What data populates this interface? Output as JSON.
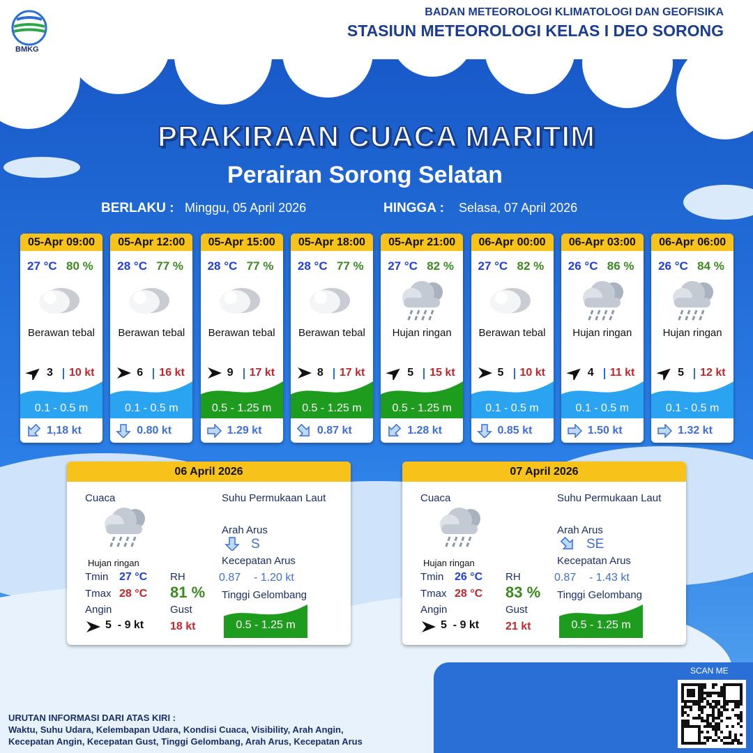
{
  "header": {
    "logo": "BMKG",
    "org": "BADAN METEOROLOGI KLIMATOLOGI DAN GEOFISIKA",
    "station": "STASIUN METEOROLOGI KELAS I DEO SORONG"
  },
  "title": "PRAKIRAAN CUACA MARITIM",
  "subtitle": "Perairan Sorong Selatan",
  "validity": {
    "from_label": "BERLAKU :",
    "from": "Minggu, 05 April 2026",
    "to_label": "HINGGA :",
    "to": "Selasa, 07 April 2026"
  },
  "cards": [
    {
      "time": "05-Apr 09:00",
      "temp": "27 °C",
      "rh": "80 %",
      "weather": "Berawan tebal",
      "wind": "3",
      "gust": "10 kt",
      "wave": "0.1 - 0.5 m",
      "current": "1,18 kt"
    },
    {
      "time": "05-Apr 12:00",
      "temp": "28 °C",
      "rh": "77 %",
      "weather": "Berawan tebal",
      "wind": "6",
      "gust": "16 kt",
      "wave": "0.1 - 0.5 m",
      "current": "0.80 kt"
    },
    {
      "time": "05-Apr 15:00",
      "temp": "28 °C",
      "rh": "77 %",
      "weather": "Berawan tebal",
      "wind": "9",
      "gust": "17 kt",
      "wave": "0.5 - 1.25 m",
      "current": "1.29 kt"
    },
    {
      "time": "05-Apr 18:00",
      "temp": "28 °C",
      "rh": "77 %",
      "weather": "Berawan tebal",
      "wind": "8",
      "gust": "17 kt",
      "wave": "0.5 - 1.25 m",
      "current": "0.87 kt"
    },
    {
      "time": "05-Apr 21:00",
      "temp": "27 °C",
      "rh": "82 %",
      "weather": "Hujan ringan",
      "wind": "5",
      "gust": "15 kt",
      "wave": "0.5 - 1.25 m",
      "current": "1.28 kt"
    },
    {
      "time": "06-Apr 00:00",
      "temp": "27 °C",
      "rh": "82 %",
      "weather": "Berawan tebal",
      "wind": "5",
      "gust": "10 kt",
      "wave": "0.1 - 0.5 m",
      "current": "0.85 kt"
    },
    {
      "time": "06-Apr 03:00",
      "temp": "26 °C",
      "rh": "86 %",
      "weather": "Hujan ringan",
      "wind": "4",
      "gust": "11 kt",
      "wave": "0.1 - 0.5 m",
      "current": "1.50 kt"
    },
    {
      "time": "06-Apr 06:00",
      "temp": "26 °C",
      "rh": "84 %",
      "weather": "Hujan ringan",
      "wind": "5",
      "gust": "12 kt",
      "wave": "0.1 - 0.5 m",
      "current": "1.32 kt"
    }
  ],
  "days": [
    {
      "date": "06 April 2026",
      "weather_label": "Cuaca",
      "weather": "Hujan ringan",
      "tmin_label": "Tmin",
      "tmin": "27 °C",
      "tmax_label": "Tmax",
      "tmax": "28 °C",
      "wind_label": "Angin",
      "wind": "5  - 9 kt",
      "rh_label": "RH",
      "rh": "81 %",
      "gust_label": "Gust",
      "gust": "18 kt",
      "sst_label": "Suhu Permukaan Laut",
      "dir_label": "Arah Arus",
      "dir": "S",
      "speed_label": "Kecepatan Arus",
      "speed_min": "0.87",
      "speed_max": "- 1.20 kt",
      "wave_label": "Tinggi Gelombang",
      "wave": "0.5 - 1.25 m"
    },
    {
      "date": "07 April 2026",
      "weather_label": "Cuaca",
      "weather": "Hujan ringan",
      "tmin_label": "Tmin",
      "tmin": "26 °C",
      "tmax_label": "Tmax",
      "tmax": "28 °C",
      "wind_label": "Angin",
      "wind": "5  - 9 kt",
      "rh_label": "RH",
      "rh": "83 %",
      "gust_label": "Gust",
      "gust": "21 kt",
      "sst_label": "Suhu Permukaan Laut",
      "dir_label": "Arah Arus",
      "dir": "SE",
      "speed_label": "Kecepatan Arus",
      "speed_min": "0.87",
      "speed_max": "- 1.43 kt",
      "wave_label": "Tinggi Gelombang",
      "wave": "0.5 - 1.25 m"
    }
  ],
  "footer": {
    "scan": "SCAN ME",
    "info_title": "URUTAN INFORMASI DARI ATAS KIRI :",
    "info_lines": [
      "Waktu, Suhu Udara, Kelembapan Udara, Kondisi Cuaca, Visibility, Arah Angin,",
      "Kecepatan Angin, Kecepatan Gust, Tinggi Gelombang, Arah Arus, Kecepatan Arus"
    ]
  }
}
